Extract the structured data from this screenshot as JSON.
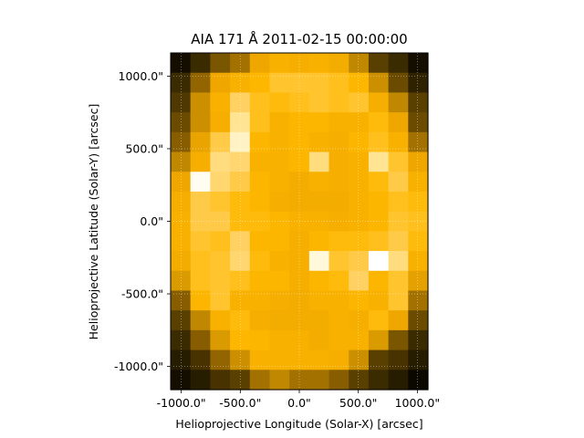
{
  "chart_data": {
    "type": "heatmap",
    "title": "AIA 171 Å 2011-02-15 00:00:00",
    "xlabel": "Helioprojective Longitude (Solar-X) [arcsec]",
    "ylabel": "Helioprojective Latitude (Solar-Y) [arcsec]",
    "xlim": [
      -1090,
      1090
    ],
    "ylim": [
      -1160,
      1160
    ],
    "x_ticks": [
      {
        "value": -1000,
        "label": "-1000.0\""
      },
      {
        "value": -500,
        "label": "-500.0\""
      },
      {
        "value": 0,
        "label": "0.0\""
      },
      {
        "value": 500,
        "label": "500.0\""
      },
      {
        "value": 1000,
        "label": "1000.0\""
      }
    ],
    "y_ticks": [
      {
        "value": 1000,
        "label": "1000.0\""
      },
      {
        "value": 500,
        "label": "500.0\""
      },
      {
        "value": 0,
        "label": "0.0\""
      },
      {
        "value": -500,
        "label": "-500.0\""
      },
      {
        "value": -1000,
        "label": "-1000.0\""
      }
    ],
    "grid": true,
    "colormap": {
      "name": "sdoaia171",
      "stops": [
        "#000000",
        "#2a1f00",
        "#5a4000",
        "#9a6a00",
        "#d99a00",
        "#f0a800",
        "#ffb800",
        "#ffd060",
        "#ffefb0",
        "#ffffff"
      ]
    },
    "grid_shape": {
      "rows": 17,
      "cols": 13
    },
    "values": [
      [
        0.05,
        0.15,
        0.28,
        0.35,
        0.55,
        0.62,
        0.6,
        0.62,
        0.58,
        0.4,
        0.22,
        0.15,
        0.05
      ],
      [
        0.15,
        0.32,
        0.55,
        0.62,
        0.66,
        0.72,
        0.72,
        0.72,
        0.7,
        0.66,
        0.42,
        0.25,
        0.12
      ],
      [
        0.2,
        0.42,
        0.62,
        0.78,
        0.7,
        0.68,
        0.7,
        0.72,
        0.7,
        0.72,
        0.6,
        0.4,
        0.22
      ],
      [
        0.25,
        0.42,
        0.6,
        0.85,
        0.7,
        0.62,
        0.65,
        0.65,
        0.62,
        0.62,
        0.68,
        0.55,
        0.25
      ],
      [
        0.3,
        0.52,
        0.75,
        0.92,
        0.65,
        0.62,
        0.65,
        0.62,
        0.6,
        0.65,
        0.7,
        0.62,
        0.35
      ],
      [
        0.4,
        0.6,
        0.82,
        0.8,
        0.62,
        0.62,
        0.65,
        0.82,
        0.6,
        0.62,
        0.85,
        0.72,
        0.55
      ],
      [
        0.55,
        0.98,
        0.8,
        0.75,
        0.65,
        0.62,
        0.58,
        0.62,
        0.6,
        0.62,
        0.68,
        0.75,
        0.62
      ],
      [
        0.6,
        0.75,
        0.72,
        0.68,
        0.65,
        0.6,
        0.58,
        0.58,
        0.58,
        0.62,
        0.65,
        0.7,
        0.68
      ],
      [
        0.62,
        0.75,
        0.75,
        0.68,
        0.68,
        0.65,
        0.62,
        0.62,
        0.6,
        0.62,
        0.65,
        0.72,
        0.7
      ],
      [
        0.62,
        0.72,
        0.7,
        0.78,
        0.65,
        0.65,
        0.6,
        0.65,
        0.68,
        0.68,
        0.7,
        0.75,
        0.68
      ],
      [
        0.58,
        0.7,
        0.72,
        0.8,
        0.68,
        0.62,
        0.6,
        0.95,
        0.72,
        0.75,
        1.0,
        0.82,
        0.62
      ],
      [
        0.45,
        0.7,
        0.72,
        0.7,
        0.65,
        0.65,
        0.6,
        0.65,
        0.68,
        0.78,
        0.65,
        0.72,
        0.5
      ],
      [
        0.3,
        0.65,
        0.72,
        0.62,
        0.62,
        0.6,
        0.58,
        0.62,
        0.62,
        0.65,
        0.62,
        0.72,
        0.35
      ],
      [
        0.22,
        0.4,
        0.62,
        0.68,
        0.6,
        0.58,
        0.58,
        0.58,
        0.62,
        0.6,
        0.68,
        0.55,
        0.25
      ],
      [
        0.15,
        0.3,
        0.45,
        0.66,
        0.65,
        0.62,
        0.62,
        0.58,
        0.62,
        0.62,
        0.45,
        0.28,
        0.15
      ],
      [
        0.1,
        0.18,
        0.32,
        0.42,
        0.62,
        0.62,
        0.62,
        0.62,
        0.6,
        0.42,
        0.22,
        0.18,
        0.1
      ],
      [
        0.05,
        0.1,
        0.18,
        0.22,
        0.35,
        0.4,
        0.35,
        0.35,
        0.3,
        0.22,
        0.15,
        0.1,
        0.03
      ]
    ]
  }
}
